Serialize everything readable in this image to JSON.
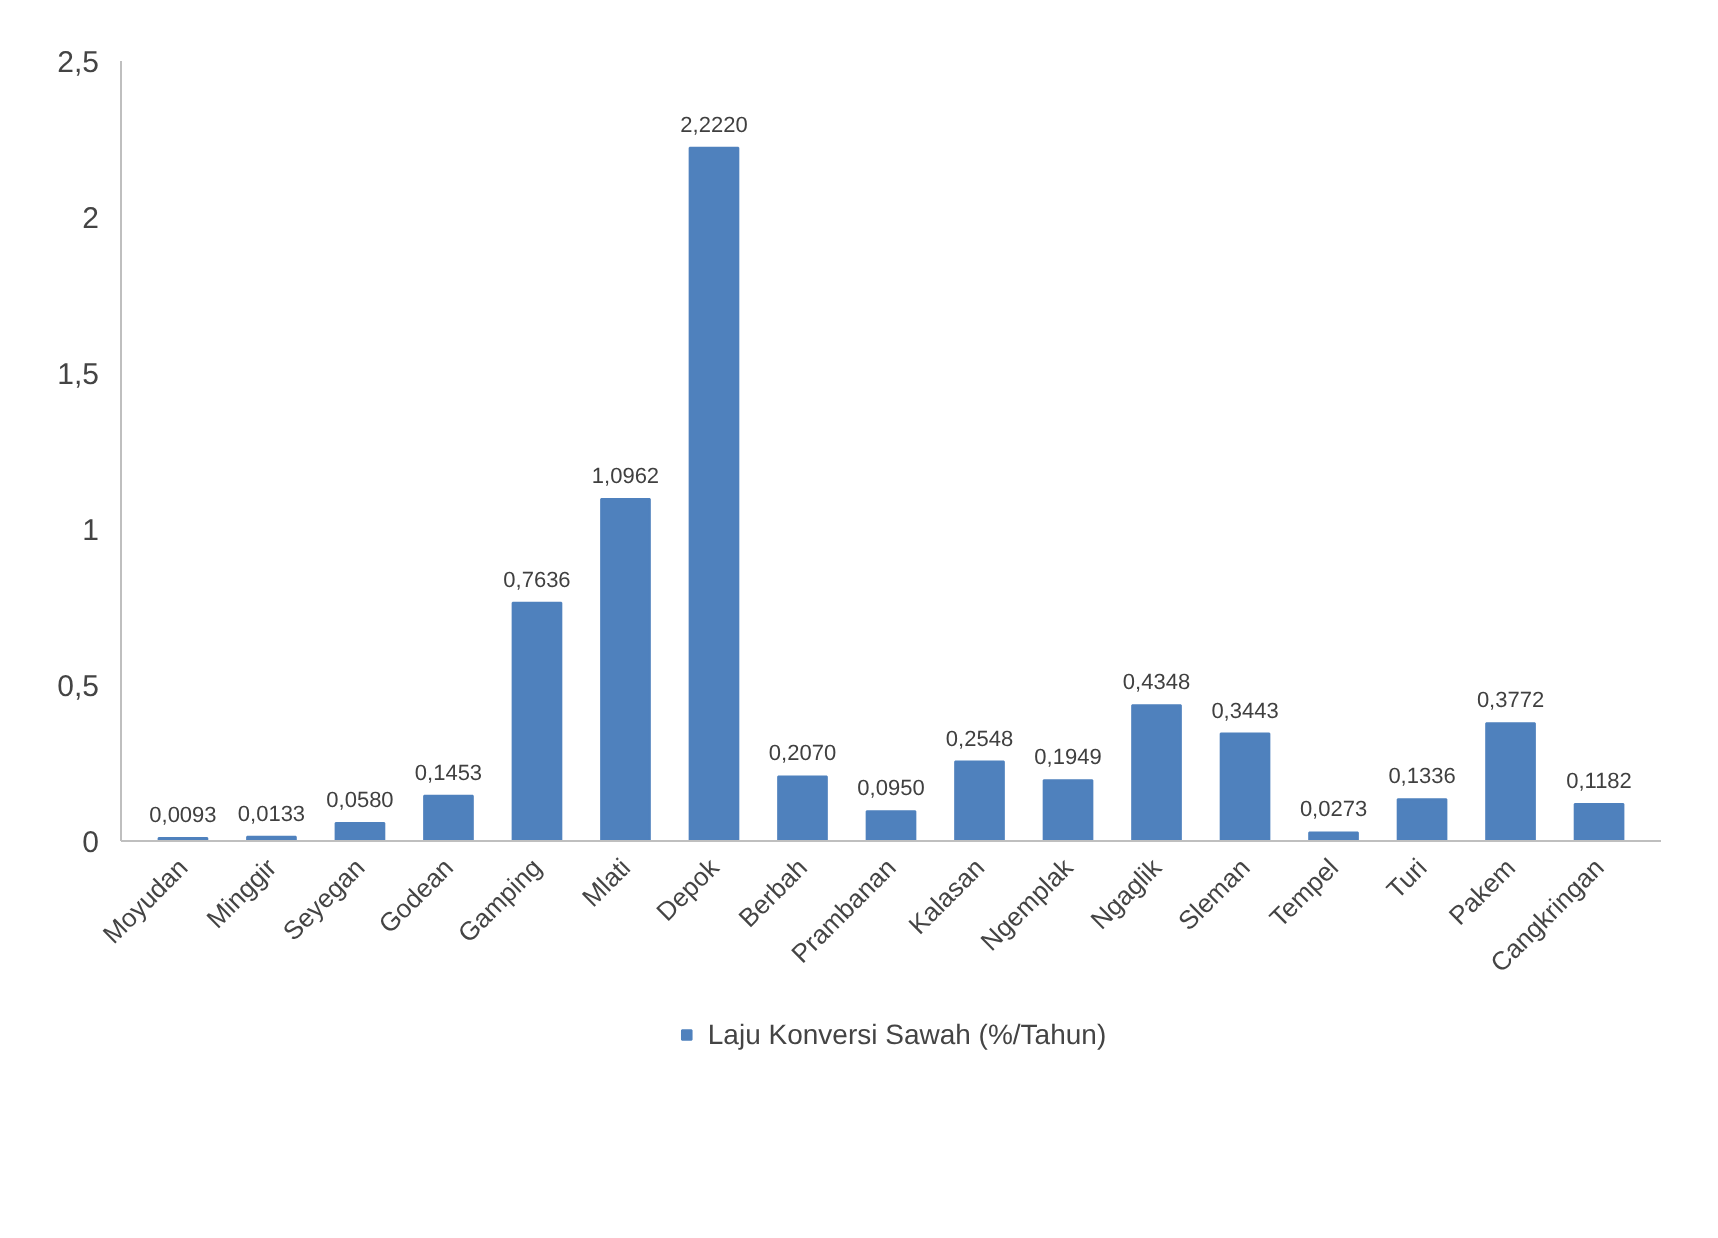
{
  "chart_data": {
    "type": "bar",
    "categories": [
      "Moyudan",
      "Minggir",
      "Seyegan",
      "Godean",
      "Gamping",
      "Mlati",
      "Depok",
      "Berbah",
      "Prambanan",
      "Kalasan",
      "Ngemplak",
      "Ngaglik",
      "Sleman",
      "Tempel",
      "Turi",
      "Pakem",
      "Cangkringan"
    ],
    "series": [
      {
        "name": "Laju Konversi Sawah (%/Tahun)",
        "color": "#4f81bd",
        "values": [
          0.0093,
          0.0133,
          0.058,
          0.1453,
          0.7636,
          1.0962,
          2.222,
          0.207,
          0.095,
          0.2548,
          0.1949,
          0.4348,
          0.3443,
          0.0273,
          0.1336,
          0.3772,
          0.1182
        ],
        "value_labels": [
          "0,0093",
          "0,0133",
          "0,0580",
          "0,1453",
          "0,7636",
          "1,0962",
          "2,2220",
          "0,2070",
          "0,0950",
          "0,2548",
          "0,1949",
          "0,4348",
          "0,3443",
          "0,0273",
          "0,1336",
          "0,3772",
          "0,1182"
        ]
      }
    ],
    "ylim": [
      0,
      2.5
    ],
    "yticks": [
      0,
      {
        "value": 0.5,
        "label": "0,5"
      },
      1,
      {
        "value": 1.5,
        "label": "1,5"
      },
      2,
      {
        "value": 2.5,
        "label": "2,5"
      }
    ],
    "grid": false,
    "legend": "bottom"
  }
}
